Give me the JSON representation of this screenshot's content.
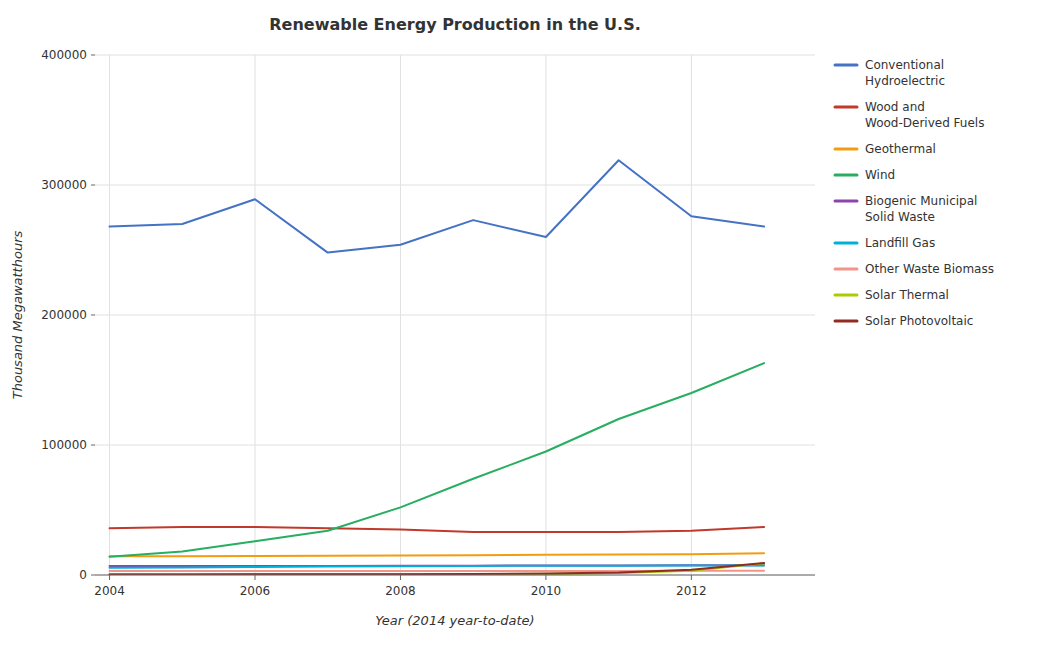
{
  "chart_data": {
    "type": "line",
    "title": "Renewable Energy Production in the U.S.",
    "xlabel": "Year (2014 year-to-date)",
    "ylabel": "Thousand Megawatthours",
    "x": [
      2004,
      2005,
      2006,
      2007,
      2008,
      2009,
      2010,
      2011,
      2012,
      2013
    ],
    "series": [
      {
        "name": "Conventional\nHydroelectric",
        "color": "#4472C4",
        "values": [
          268000,
          270000,
          289000,
          248000,
          254000,
          273000,
          260000,
          319000,
          276000,
          268000
        ]
      },
      {
        "name": "Wood and\nWood-Derived Fuels",
        "color": "#C0392B",
        "values": [
          36000,
          37000,
          37000,
          36000,
          35000,
          33000,
          33000,
          33000,
          34000,
          37000
        ]
      },
      {
        "name": "Geothermal",
        "color": "#F39C12",
        "values": [
          14500,
          14500,
          14700,
          14800,
          15000,
          15200,
          15600,
          15700,
          16000,
          16800
        ]
      },
      {
        "name": "Wind",
        "color": "#27AE60",
        "values": [
          14000,
          18000,
          26000,
          34000,
          52000,
          74000,
          95000,
          120000,
          140000,
          163000
        ]
      },
      {
        "name": "Biogenic Municipal\nSolid Waste",
        "color": "#8E44AD",
        "values": [
          7000,
          7000,
          7000,
          7000,
          7200,
          7200,
          7300,
          7400,
          7500,
          7500
        ]
      },
      {
        "name": "Landfill Gas",
        "color": "#00B0D8",
        "values": [
          5500,
          5800,
          6200,
          6500,
          6800,
          7000,
          7200,
          7200,
          7300,
          7400
        ]
      },
      {
        "name": "Other Waste Biomass",
        "color": "#F1948A",
        "values": [
          3000,
          3000,
          3000,
          3000,
          3000,
          3000,
          3000,
          3100,
          3200,
          3200
        ]
      },
      {
        "name": "Solar Thermal",
        "color": "#AACC00",
        "values": [
          700,
          700,
          700,
          700,
          700,
          700,
          700,
          1500,
          3200,
          9000
        ]
      },
      {
        "name": "Solar Photovoltaic",
        "color": "#922B21",
        "values": [
          300,
          400,
          500,
          500,
          600,
          800,
          1100,
          1900,
          4000,
          9200
        ]
      }
    ],
    "xlim": [
      2003.8,
      2013.7
    ],
    "ylim": [
      0,
      400000
    ],
    "xticks": [
      2004,
      2006,
      2008,
      2010,
      2012
    ],
    "yticks": [
      0,
      100000,
      200000,
      300000,
      400000
    ],
    "grid": true,
    "legend": "right"
  }
}
